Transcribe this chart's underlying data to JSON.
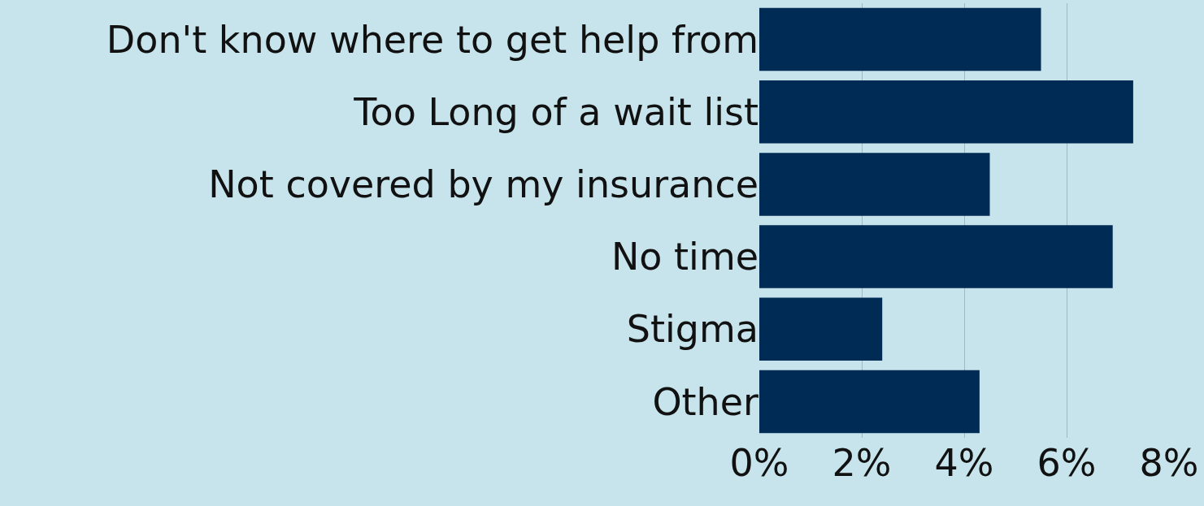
{
  "chart_data": {
    "type": "bar",
    "orientation": "horizontal",
    "categories": [
      "Don't know where to get help from",
      "Too Long of a wait list",
      "Not covered by my insurance",
      "No time",
      "Stigma",
      "Other"
    ],
    "values": [
      5.5,
      7.3,
      4.5,
      6.9,
      2.4,
      4.3
    ],
    "color": "#002b54",
    "xlim": [
      0,
      8
    ],
    "xticks": [
      {
        "value": 0,
        "label": "0%"
      },
      {
        "value": 2,
        "label": "2%"
      },
      {
        "value": 4,
        "label": "4%"
      },
      {
        "value": 6,
        "label": "6%"
      },
      {
        "value": 8,
        "label": "8%"
      }
    ],
    "grid": "x",
    "legend": false
  }
}
